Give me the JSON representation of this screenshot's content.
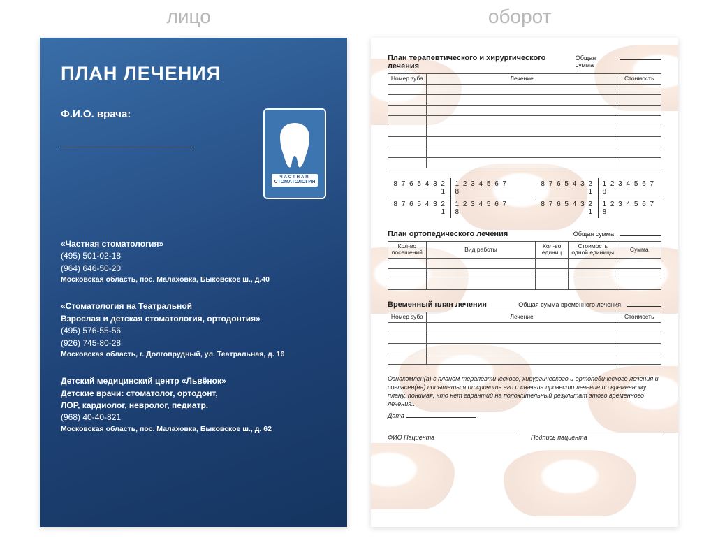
{
  "labels": {
    "front": "лицо",
    "back": "оборот"
  },
  "front": {
    "title": "ПЛАН ЛЕЧЕНИЯ",
    "doctor_label": "Ф.И.О. врача:",
    "logo": {
      "small": "ЧАСТНАЯ",
      "big": "СТОМАТОЛОГИЯ"
    },
    "clinics": [
      {
        "name": "«Частная стоматология»",
        "phones": [
          "(495) 501-02-18",
          "(964) 646-50-20"
        ],
        "addr": "Московская область, пос. Малаховка, Быковское ш., д.40"
      },
      {
        "name": "«Стоматология на Театральной\nВзрослая и детская стоматология, ортодонтия»",
        "phones": [
          "(495) 576-55-56",
          "(926) 745-80-28"
        ],
        "addr": "Московская область, г. Долгопрудный, ул. Театральная, д. 16"
      },
      {
        "name": "Детский медицинский центр «Львёнок»\nДетские врачи: стоматолог, ортодонт,\nЛОР, кардиолог, невролог, педиатр.",
        "phones": [
          "(968) 40-40-821"
        ],
        "addr": "Московская область, пос. Малаховка, Быковское ш., д. 62"
      }
    ]
  },
  "back": {
    "section1": {
      "title": "План терапевтического и хирургического лечения",
      "total_label": "Общая сумма",
      "cols": [
        "Номер зуба",
        "Лечение",
        "Стоимость"
      ],
      "col_widths": [
        "14%",
        "70%",
        "16%"
      ],
      "rows": 8
    },
    "teeth": {
      "upper_right": "8 7 6 5 4 3 2 1",
      "upper_left": "1 2 3 4 5 6 7 8",
      "lower_right": "8 7 6 5 4 3 2 1",
      "lower_left": "1 2 3 4 5 6 7 8"
    },
    "section2": {
      "title": "План ортопедического лечения",
      "total_label": "Общая сумма",
      "cols": [
        "Кол-во посещений",
        "Вид работы",
        "Кол-во единиц",
        "Стоимость одной единицы",
        "Сумма"
      ],
      "col_widths": [
        "14%",
        "40%",
        "12%",
        "18%",
        "16%"
      ],
      "rows": 3
    },
    "section3": {
      "title": "Временный план лечения",
      "total_label": "Общая сумма временного лечения",
      "cols": [
        "Номер зуба",
        "Лечение",
        "Стоимость"
      ],
      "col_widths": [
        "14%",
        "70%",
        "16%"
      ],
      "rows": 4
    },
    "consent": "Ознакомлен(а) с планом терапевтического, хирургического и ортопедического лечения и согласен(на) попытаться отсрочить его и сначала провести лечение по временному плану, понимая, что нет гарантий на положительный результат этого временного лечения..",
    "date_label": "Дата",
    "sig_patient_name": "ФИО Пациента",
    "sig_patient_sign": "Подпись пациента"
  },
  "style": {
    "front_gradient_top": "#3a6ea8",
    "front_gradient_bottom": "#153560",
    "label_gray": "#b8b8b8",
    "mouth_tint": "#d68a5e"
  }
}
